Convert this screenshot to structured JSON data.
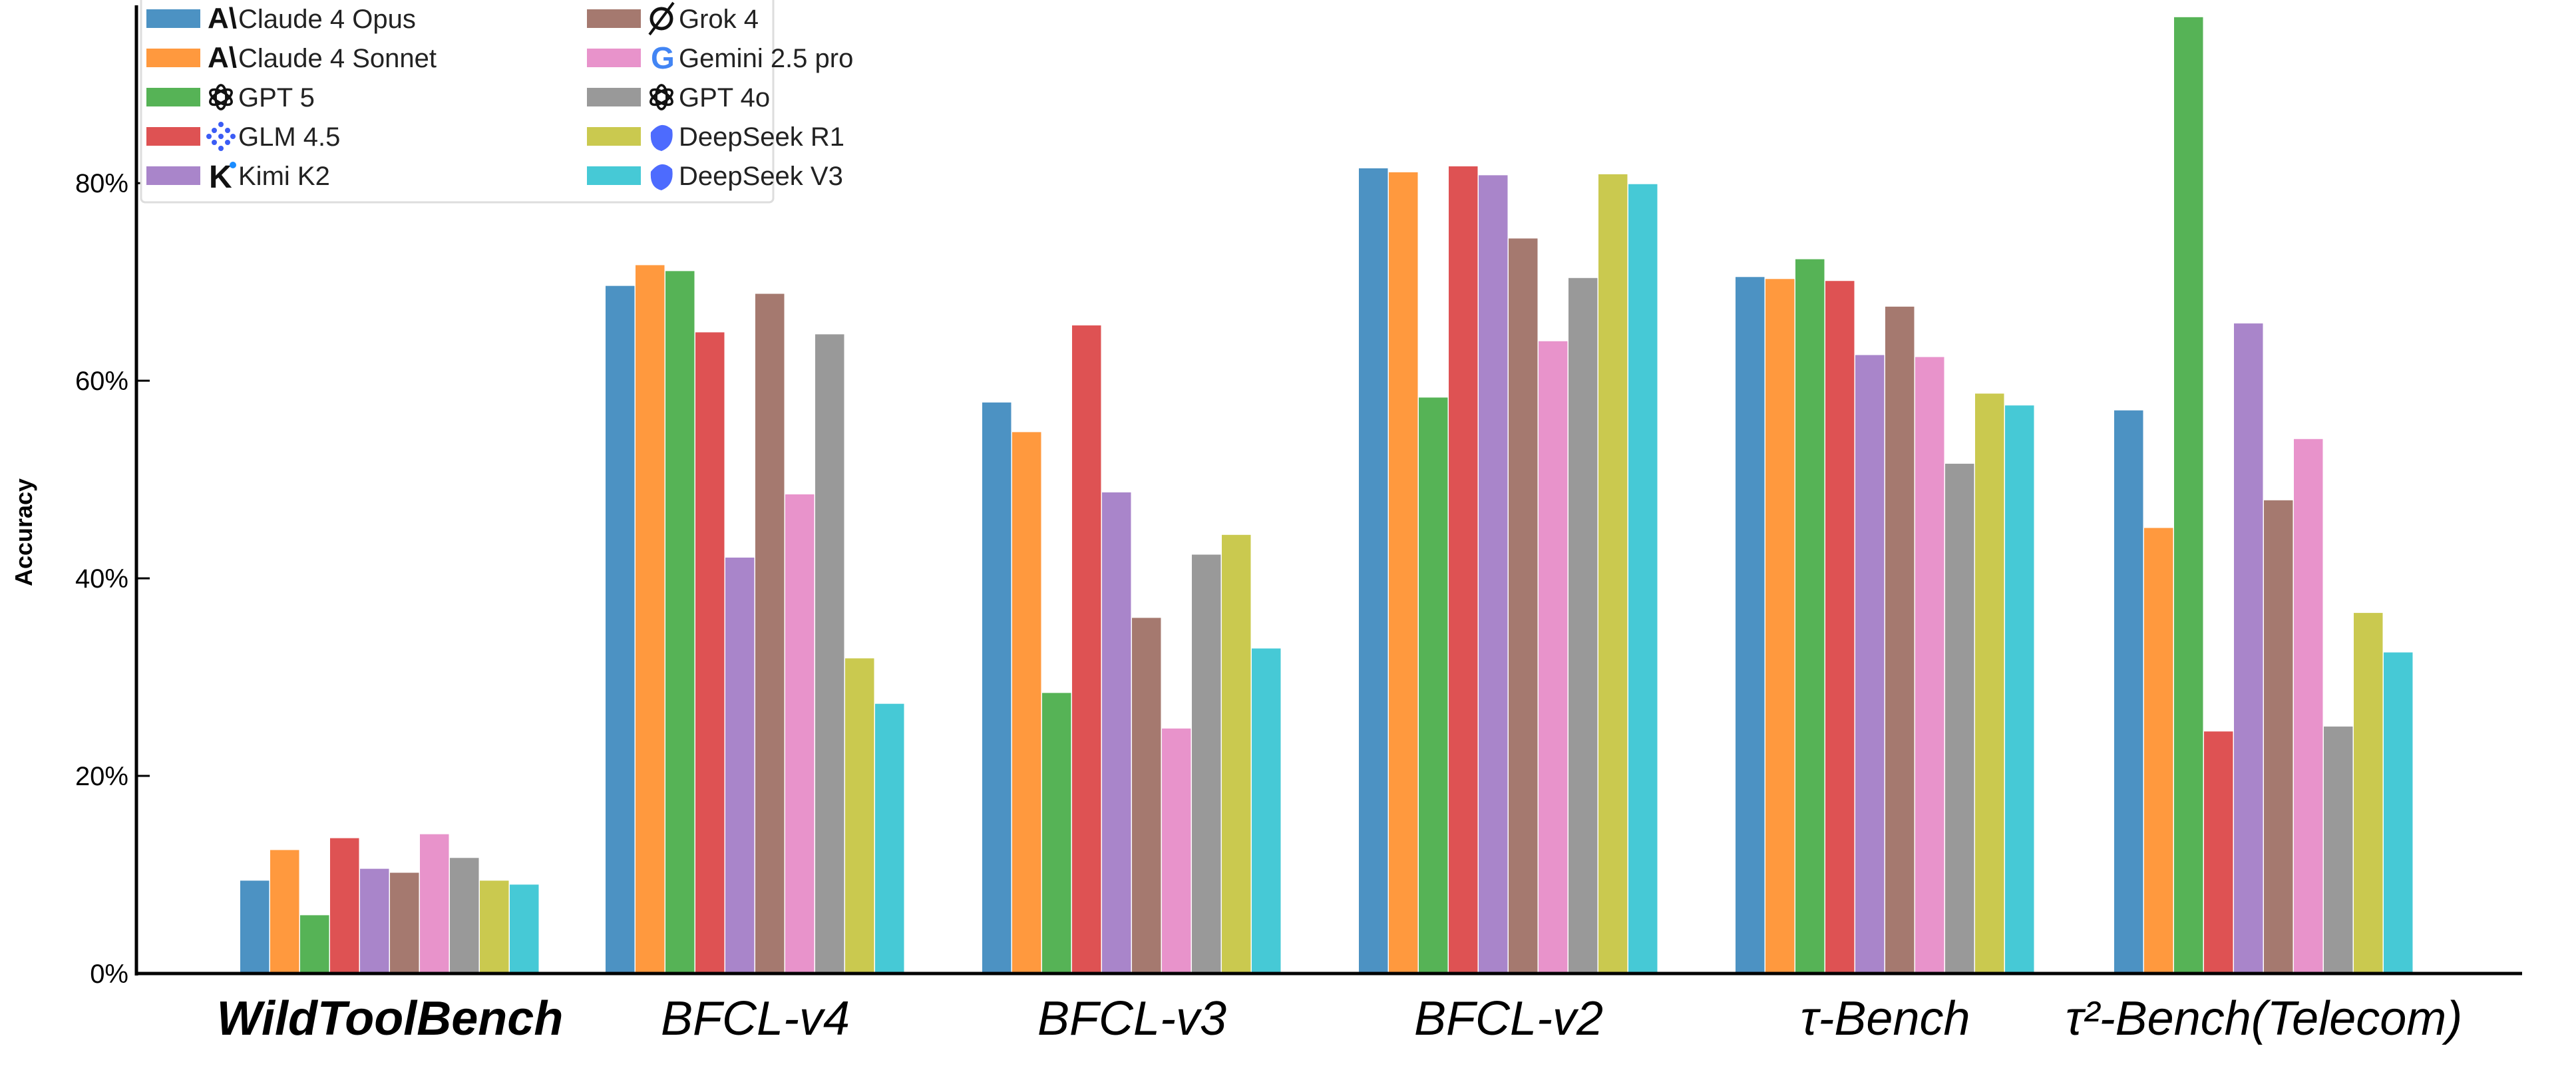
{
  "chart_data": {
    "type": "bar",
    "title": "",
    "xlabel": "",
    "ylabel": "Accuracy",
    "ylim": [
      0,
      98
    ],
    "yticks": [
      0,
      20,
      40,
      60,
      80
    ],
    "ytick_labels": [
      "0%",
      "20%",
      "40%",
      "60%",
      "80%"
    ],
    "grid": false,
    "legend_position": "top-left",
    "categories": [
      "WildToolBench",
      "BFCL-v4",
      "BFCL-v3",
      "BFCL-v2",
      "τ-Bench",
      "τ²-Bench(Telecom)"
    ],
    "category_bold": [
      true,
      false,
      false,
      false,
      false,
      false
    ],
    "series": [
      {
        "name": "Claude 4 Opus",
        "color": "#4c92c3",
        "icon": "anthropic-icon",
        "values": [
          9.4,
          69.6,
          57.8,
          81.5,
          70.5,
          57.0
        ]
      },
      {
        "name": "Claude 4 Sonnet",
        "color": "#ff993e",
        "icon": "anthropic-icon",
        "values": [
          12.5,
          71.7,
          54.8,
          81.1,
          70.3,
          45.1
        ]
      },
      {
        "name": "GPT 5",
        "color": "#56b356",
        "icon": "openai-icon",
        "values": [
          5.9,
          71.1,
          28.4,
          58.3,
          72.3,
          96.8
        ]
      },
      {
        "name": "GLM 4.5",
        "color": "#de5253",
        "icon": "zhipu-icon",
        "values": [
          13.7,
          64.9,
          65.6,
          81.7,
          70.1,
          24.5
        ]
      },
      {
        "name": "Kimi K2",
        "color": "#a985ca",
        "icon": "kimi-icon",
        "values": [
          10.6,
          42.1,
          48.7,
          80.8,
          62.6,
          65.8
        ]
      },
      {
        "name": "Grok 4",
        "color": "#a5796f",
        "icon": "grok-icon",
        "values": [
          10.2,
          68.8,
          36.0,
          74.4,
          67.5,
          47.9
        ]
      },
      {
        "name": "Gemini 2.5 pro",
        "color": "#e893cb",
        "icon": "google-icon",
        "values": [
          14.1,
          48.5,
          24.8,
          64.0,
          62.4,
          54.1
        ]
      },
      {
        "name": "GPT 4o",
        "color": "#999999",
        "icon": "openai-icon",
        "values": [
          11.7,
          64.7,
          42.4,
          70.4,
          51.6,
          25.0
        ]
      },
      {
        "name": "DeepSeek R1",
        "color": "#cac94f",
        "icon": "deepseek-icon",
        "values": [
          9.4,
          31.9,
          44.4,
          80.9,
          58.7,
          36.5
        ]
      },
      {
        "name": "DeepSeek V3",
        "color": "#46c9d6",
        "icon": "deepseek-icon",
        "values": [
          9.0,
          27.3,
          32.9,
          79.9,
          57.5,
          32.5
        ]
      }
    ]
  }
}
